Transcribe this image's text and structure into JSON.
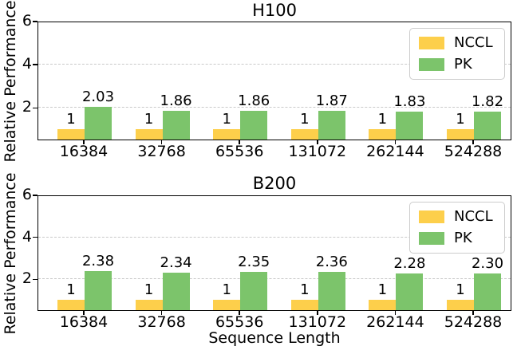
{
  "chart_data": [
    {
      "type": "bar",
      "title": "H100",
      "xlabel": "",
      "ylabel": "Relative Performance",
      "categories": [
        "16384",
        "32768",
        "65536",
        "131072",
        "262144",
        "524288"
      ],
      "series": [
        {
          "name": "NCCL",
          "color": "#FDCF4B",
          "values": [
            1,
            1,
            1,
            1,
            1,
            1
          ],
          "value_labels": [
            "1",
            "1",
            "1",
            "1",
            "1",
            "1"
          ]
        },
        {
          "name": "PK",
          "color": "#7CC46B",
          "values": [
            2.03,
            1.86,
            1.86,
            1.87,
            1.83,
            1.82
          ],
          "value_labels": [
            "2.03",
            "1.86",
            "1.86",
            "1.87",
            "1.83",
            "1.82"
          ]
        }
      ],
      "ylim": [
        0.5,
        6
      ],
      "yticks": [
        2,
        4,
        6
      ],
      "grid": "horizontal-dashed",
      "legend": {
        "position": "upper-right",
        "items": [
          "NCCL",
          "PK"
        ]
      }
    },
    {
      "type": "bar",
      "title": "B200",
      "xlabel": "Sequence Length",
      "ylabel": "Relative Performance",
      "categories": [
        "16384",
        "32768",
        "65536",
        "131072",
        "262144",
        "524288"
      ],
      "series": [
        {
          "name": "NCCL",
          "color": "#FDCF4B",
          "values": [
            1,
            1,
            1,
            1,
            1,
            1
          ],
          "value_labels": [
            "1",
            "1",
            "1",
            "1",
            "1",
            "1"
          ]
        },
        {
          "name": "PK",
          "color": "#7CC46B",
          "values": [
            2.38,
            2.34,
            2.35,
            2.36,
            2.28,
            2.3
          ],
          "value_labels": [
            "2.38",
            "2.34",
            "2.35",
            "2.36",
            "2.28",
            "2.30"
          ]
        }
      ],
      "ylim": [
        0.5,
        6
      ],
      "yticks": [
        2,
        4,
        6
      ],
      "grid": "horizontal-dashed",
      "legend": {
        "position": "upper-right",
        "items": [
          "NCCL",
          "PK"
        ]
      }
    }
  ]
}
